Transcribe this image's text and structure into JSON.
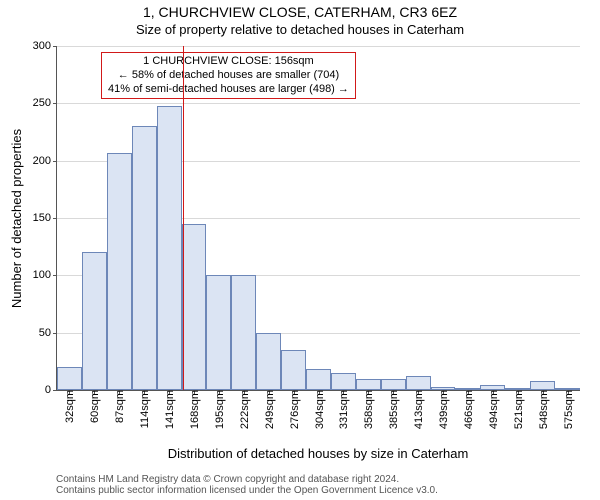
{
  "header": {
    "title": "1, CHURCHVIEW CLOSE, CATERHAM, CR3 6EZ",
    "subtitle": "Size of property relative to detached houses in Caterham"
  },
  "axes": {
    "ylabel": "Number of detached properties",
    "xlabel": "Distribution of detached houses by size in Caterham"
  },
  "chart": {
    "type": "histogram",
    "ylim": [
      0,
      300
    ],
    "yticks": [
      0,
      50,
      100,
      150,
      200,
      250,
      300
    ],
    "grid_color": "#d9d9d9",
    "background_color": "#ffffff",
    "bar_fill": "#dbe4f3",
    "bar_stroke": "#6d87b8",
    "bar_stroke_width": 1,
    "marker": {
      "x_center_index": 4.55,
      "color": "#d11919",
      "width": 1
    },
    "x_labels": [
      "32sqm",
      "60sqm",
      "87sqm",
      "114sqm",
      "141sqm",
      "168sqm",
      "195sqm",
      "222sqm",
      "249sqm",
      "276sqm",
      "304sqm",
      "331sqm",
      "358sqm",
      "385sqm",
      "413sqm",
      "439sqm",
      "466sqm",
      "494sqm",
      "521sqm",
      "548sqm",
      "575sqm"
    ],
    "values": [
      20,
      120,
      207,
      230,
      248,
      145,
      100,
      100,
      50,
      35,
      18,
      15,
      10,
      10,
      12,
      3,
      2,
      4,
      2,
      8,
      2
    ]
  },
  "annotation": {
    "line1": "1 CHURCHVIEW CLOSE: 156sqm",
    "line2": "← 58% of detached houses are smaller (704)",
    "line3": "41% of semi-detached houses are larger (498) →",
    "border_color": "#d11919",
    "fontsize": 11
  },
  "footer": {
    "line1": "Contains HM Land Registry data © Crown copyright and database right 2024.",
    "line2": "Contains public sector information licensed under the Open Government Licence v3.0."
  }
}
